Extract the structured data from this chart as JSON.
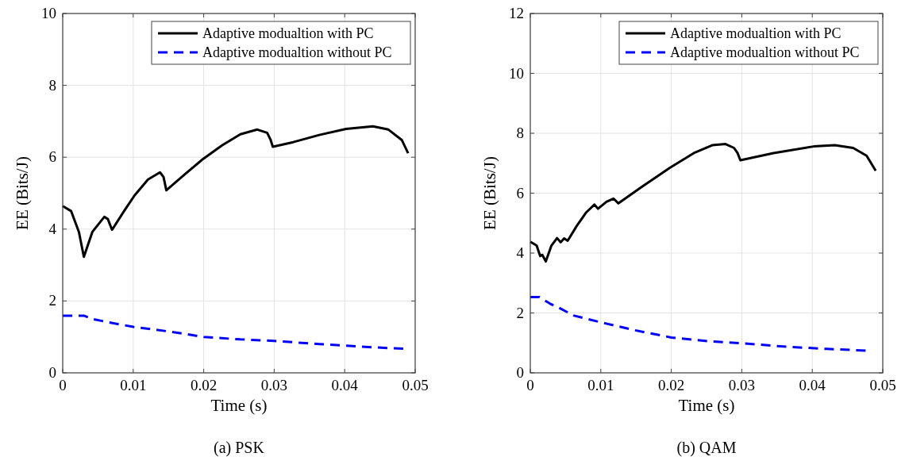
{
  "chart_data": [
    {
      "type": "line",
      "title": "(a) PSK",
      "xlabel": "Time (s)",
      "ylabel": "EE (Bits/J)",
      "xlim": [
        0,
        0.05
      ],
      "xticks": [
        0,
        0.01,
        0.02,
        0.03,
        0.04,
        0.05
      ],
      "ylim": [
        0,
        10
      ],
      "yticks": [
        0,
        2,
        4,
        6,
        8,
        10
      ],
      "grid": true,
      "legend": "top right",
      "marker": "none",
      "series": [
        {
          "name": "Adaptive modualtion with PC",
          "color": "#000000",
          "line_style": "solid",
          "x": [
            0,
            0.0012,
            0.0023,
            0.003,
            0.0042,
            0.0059,
            0.0064,
            0.007,
            0.0087,
            0.0102,
            0.0121,
            0.0138,
            0.0143,
            0.0147,
            0.0173,
            0.0199,
            0.0226,
            0.0252,
            0.0276,
            0.029,
            0.0295,
            0.0298,
            0.0327,
            0.0364,
            0.0402,
            0.044,
            0.0462,
            0.0481,
            0.049
          ],
          "values": [
            4.64,
            4.5,
            3.92,
            3.23,
            3.92,
            4.34,
            4.28,
            3.98,
            4.5,
            4.94,
            5.38,
            5.58,
            5.45,
            5.08,
            5.52,
            5.95,
            6.33,
            6.64,
            6.77,
            6.68,
            6.48,
            6.29,
            6.42,
            6.62,
            6.79,
            6.86,
            6.77,
            6.48,
            6.11
          ]
        },
        {
          "name": "Adaptive modualtion without PC",
          "color": "#0000ff",
          "line_style": "dashed",
          "x": [
            0,
            0.003,
            0.0042,
            0.0064,
            0.01,
            0.0151,
            0.02,
            0.0252,
            0.03,
            0.0364,
            0.044,
            0.0486
          ],
          "values": [
            1.59,
            1.59,
            1.5,
            1.41,
            1.28,
            1.15,
            1.0,
            0.93,
            0.89,
            0.8,
            0.71,
            0.67
          ]
        }
      ]
    },
    {
      "type": "line",
      "title": "(b) QAM",
      "xlabel": "Time (s)",
      "ylabel": "EE (Bits/J)",
      "xlim": [
        0,
        0.05
      ],
      "xticks": [
        0,
        0.01,
        0.02,
        0.03,
        0.04,
        0.05
      ],
      "ylim": [
        0,
        12
      ],
      "yticks": [
        0,
        2,
        4,
        6,
        8,
        10,
        12
      ],
      "grid": true,
      "legend": "top right",
      "marker": "none",
      "series": [
        {
          "name": "Adaptive modualtion with PC",
          "color": "#000000",
          "line_style": "solid",
          "x": [
            0,
            0.0009,
            0.0014,
            0.0017,
            0.0022,
            0.003,
            0.0038,
            0.0043,
            0.0048,
            0.0053,
            0.0066,
            0.0079,
            0.0091,
            0.0096,
            0.0108,
            0.0118,
            0.0125,
            0.0157,
            0.0198,
            0.0232,
            0.0258,
            0.0277,
            0.0289,
            0.0294,
            0.0298,
            0.0345,
            0.0402,
            0.0432,
            0.0458,
            0.0477,
            0.049
          ],
          "values": [
            4.38,
            4.25,
            3.9,
            3.94,
            3.72,
            4.25,
            4.5,
            4.36,
            4.49,
            4.41,
            4.91,
            5.35,
            5.62,
            5.48,
            5.71,
            5.82,
            5.66,
            6.19,
            6.85,
            7.34,
            7.6,
            7.64,
            7.51,
            7.34,
            7.1,
            7.34,
            7.56,
            7.6,
            7.51,
            7.25,
            6.75
          ]
        },
        {
          "name": "Adaptive modualtion without PC",
          "color": "#0000ff",
          "line_style": "dashed",
          "x": [
            0,
            0.0013,
            0.0028,
            0.004,
            0.0062,
            0.0096,
            0.0149,
            0.02,
            0.0251,
            0.03,
            0.0364,
            0.042,
            0.0479
          ],
          "values": [
            2.53,
            2.53,
            2.31,
            2.18,
            1.91,
            1.71,
            1.42,
            1.18,
            1.06,
            0.99,
            0.87,
            0.8,
            0.74
          ]
        }
      ]
    }
  ]
}
